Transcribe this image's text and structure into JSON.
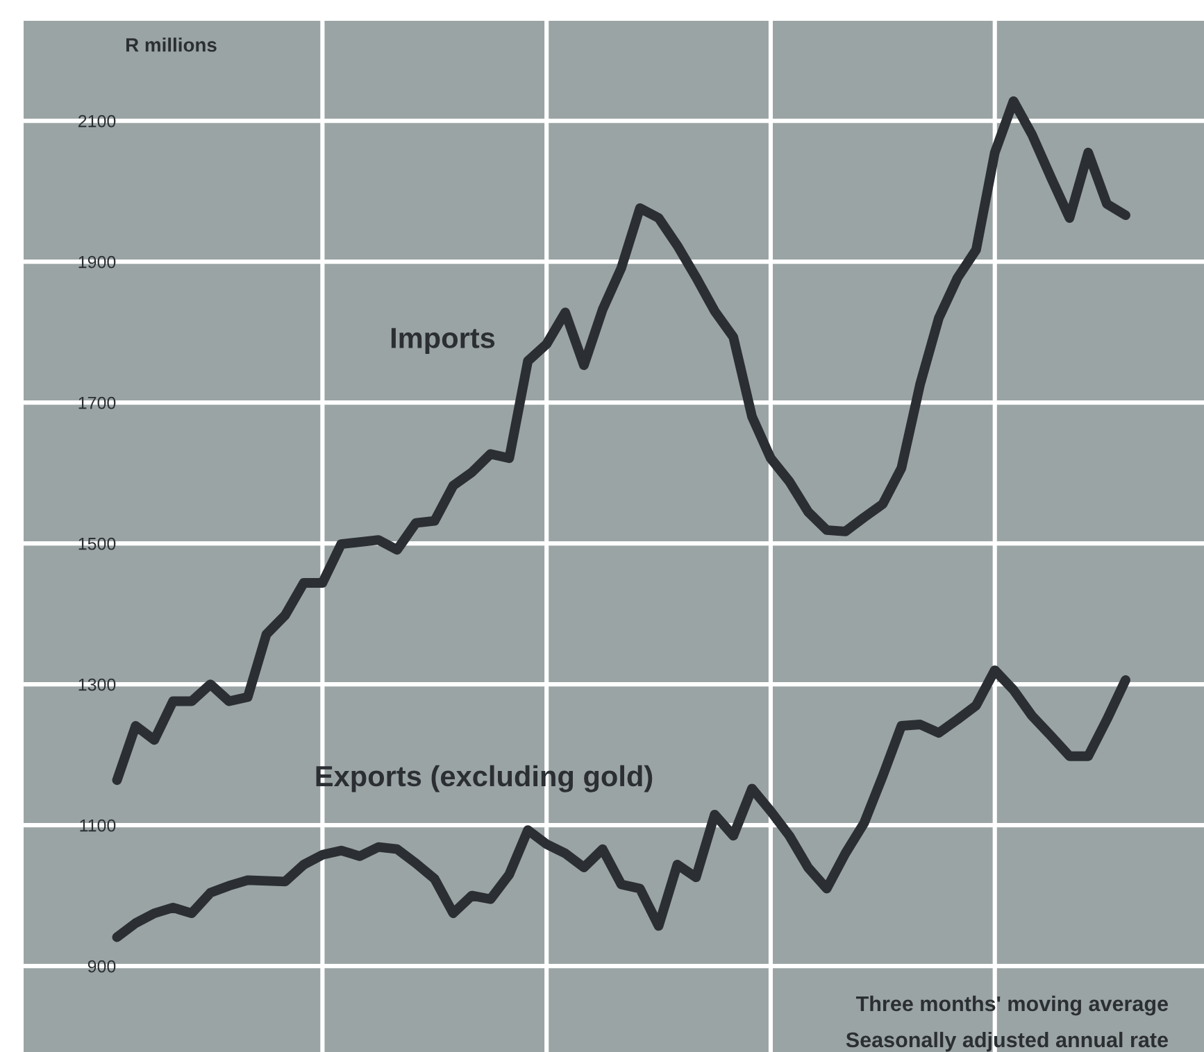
{
  "chart_data": {
    "type": "line",
    "ylabel": "R millions",
    "categories": [
      null,
      null,
      null,
      null,
      null,
      null,
      null,
      null,
      null,
      null,
      null,
      null,
      null,
      null,
      null,
      null,
      null,
      null,
      null,
      null,
      null,
      null,
      null,
      null,
      null,
      null,
      null,
      null,
      null,
      null,
      null,
      null,
      null,
      null,
      null,
      null,
      null,
      null,
      null,
      null,
      null,
      null,
      null,
      null,
      null,
      null,
      null,
      null,
      null,
      null,
      null,
      null,
      null,
      null,
      null
    ],
    "ylim": [
      778,
      2242
    ],
    "yticks": [
      900,
      1100,
      1300,
      1500,
      1700,
      1900,
      2100
    ],
    "tick_labels": "y",
    "grid": true,
    "legend": false,
    "marker": "none",
    "line_style": "solid",
    "series": [
      {
        "name": "Imports",
        "color": "#2b2f33",
        "values": [
          1164,
          1241,
          1221,
          1276,
          1276,
          1300,
          1276,
          1282,
          1371,
          1398,
          1444,
          1444,
          1499,
          1502,
          1505,
          1491,
          1529,
          1532,
          1582,
          1601,
          1627,
          1621,
          1759,
          1783,
          1828,
          1753,
          1832,
          1891,
          1976,
          1962,
          1923,
          1878,
          1830,
          1793,
          1680,
          1621,
          1588,
          1545,
          1519,
          1517,
          1537,
          1556,
          1607,
          1726,
          1820,
          1877,
          1917,
          2055,
          2128,
          2080,
          2020,
          1962,
          2055,
          1982,
          1966
        ]
      },
      {
        "name": "Exports (excluding gold)",
        "color": "#2b2f33",
        "values": [
          941,
          961,
          975,
          983,
          975,
          1004,
          1014,
          1022,
          1021,
          1020,
          1044,
          1058,
          1064,
          1056,
          1069,
          1066,
          1046,
          1024,
          975,
          1000,
          995,
          1030,
          1093,
          1073,
          1060,
          1040,
          1066,
          1016,
          1010,
          957,
          1044,
          1026,
          1115,
          1085,
          1152,
          1120,
          1085,
          1040,
          1010,
          1060,
          1103,
          1170,
          1241,
          1243,
          1231,
          1250,
          1270,
          1320,
          1292,
          1255,
          1227,
          1198,
          1198,
          1250,
          1306
        ]
      }
    ],
    "annotations": [
      "Three months' moving average",
      "Seasonally adjusted annual rate"
    ]
  }
}
